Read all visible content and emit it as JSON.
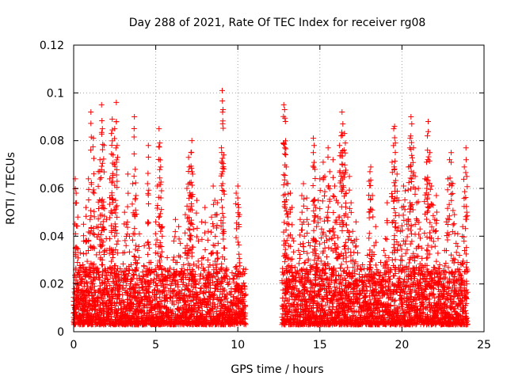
{
  "chart_data": {
    "type": "scatter",
    "title": "Day 288 of 2021, Rate Of TEC Index for receiver rg08",
    "xlabel": "GPS time / hours",
    "ylabel": "ROTI / TECUs",
    "xlim": [
      0,
      25
    ],
    "ylim": [
      0,
      0.12
    ],
    "x_ticks": [
      "0",
      "5",
      "10",
      "15",
      "20",
      "25"
    ],
    "y_ticks": [
      "0",
      "0.02",
      "0.04",
      "0.06",
      "0.08",
      "0.1",
      "0.12"
    ],
    "x_tick_values": [
      0,
      5,
      10,
      15,
      20,
      25
    ],
    "y_tick_values": [
      0,
      0.02,
      0.04,
      0.06,
      0.08,
      0.1,
      0.12
    ],
    "grid": true,
    "legend": "none",
    "marker": "plus",
    "color": "#ff0000",
    "data_gap": [
      10.5,
      12.7
    ],
    "series": [
      {
        "values": [
          [
            0.0,
            0.006
          ],
          [
            0.05,
            0.018
          ],
          [
            0.1,
            0.064
          ],
          [
            0.12,
            0.041
          ],
          [
            0.15,
            0.058
          ],
          [
            0.2,
            0.035
          ],
          [
            0.25,
            0.048
          ],
          [
            0.3,
            0.025
          ],
          [
            0.35,
            0.012
          ],
          [
            0.4,
            0.033
          ],
          [
            0.45,
            0.006
          ],
          [
            0.5,
            0.021
          ],
          [
            0.55,
            0.028
          ],
          [
            0.6,
            0.045
          ],
          [
            0.65,
            0.015
          ],
          [
            0.7,
            0.009
          ],
          [
            0.75,
            0.052
          ],
          [
            0.8,
            0.038
          ],
          [
            0.85,
            0.019
          ],
          [
            0.9,
            0.064
          ],
          [
            0.95,
            0.027
          ],
          [
            1.0,
            0.047
          ],
          [
            1.05,
            0.092
          ],
          [
            1.1,
            0.015
          ],
          [
            1.15,
            0.035
          ],
          [
            1.2,
            0.081
          ],
          [
            1.25,
            0.058
          ],
          [
            1.3,
            0.022
          ],
          [
            1.35,
            0.011
          ],
          [
            1.4,
            0.044
          ],
          [
            1.5,
            0.067
          ],
          [
            1.6,
            0.072
          ],
          [
            1.65,
            0.045
          ],
          [
            1.7,
            0.095
          ],
          [
            1.75,
            0.085
          ],
          [
            1.8,
            0.052
          ],
          [
            1.85,
            0.078
          ],
          [
            1.9,
            0.034
          ],
          [
            2.0,
            0.047
          ],
          [
            2.1,
            0.021
          ],
          [
            2.2,
            0.064
          ],
          [
            2.3,
            0.083
          ],
          [
            2.35,
            0.089
          ],
          [
            2.4,
            0.074
          ],
          [
            2.5,
            0.085
          ],
          [
            2.55,
            0.055
          ],
          [
            2.6,
            0.096
          ],
          [
            2.65,
            0.078
          ],
          [
            2.7,
            0.038
          ],
          [
            2.8,
            0.022
          ],
          [
            2.9,
            0.012
          ],
          [
            3.0,
            0.033
          ],
          [
            3.1,
            0.05
          ],
          [
            3.2,
            0.045
          ],
          [
            3.3,
            0.066
          ],
          [
            3.4,
            0.04
          ],
          [
            3.5,
            0.028
          ],
          [
            3.6,
            0.062
          ],
          [
            3.7,
            0.09
          ],
          [
            3.75,
            0.068
          ],
          [
            3.8,
            0.057
          ],
          [
            3.9,
            0.034
          ],
          [
            4.0,
            0.041
          ],
          [
            4.1,
            0.013
          ],
          [
            4.2,
            0.025
          ],
          [
            4.3,
            0.036
          ],
          [
            4.4,
            0.019
          ],
          [
            4.5,
            0.062
          ],
          [
            4.55,
            0.078
          ],
          [
            4.6,
            0.035
          ],
          [
            4.7,
            0.029
          ],
          [
            4.8,
            0.013
          ],
          [
            4.9,
            0.022
          ],
          [
            5.0,
            0.046
          ],
          [
            5.1,
            0.061
          ],
          [
            5.2,
            0.085
          ],
          [
            5.25,
            0.079
          ],
          [
            5.3,
            0.069
          ],
          [
            5.35,
            0.059
          ],
          [
            5.4,
            0.044
          ],
          [
            5.5,
            0.023
          ],
          [
            5.6,
            0.014
          ],
          [
            5.7,
            0.031
          ],
          [
            5.8,
            0.025
          ],
          [
            5.9,
            0.018
          ],
          [
            6.0,
            0.012
          ],
          [
            6.1,
            0.038
          ],
          [
            6.2,
            0.047
          ],
          [
            6.3,
            0.029
          ],
          [
            6.4,
            0.044
          ],
          [
            6.5,
            0.037
          ],
          [
            6.6,
            0.022
          ],
          [
            6.7,
            0.028
          ],
          [
            6.8,
            0.049
          ],
          [
            6.9,
            0.06
          ],
          [
            7.0,
            0.073
          ],
          [
            7.05,
            0.069
          ],
          [
            7.1,
            0.057
          ],
          [
            7.15,
            0.075
          ],
          [
            7.2,
            0.08
          ],
          [
            7.25,
            0.066
          ],
          [
            7.3,
            0.043
          ],
          [
            7.4,
            0.024
          ],
          [
            7.5,
            0.055
          ],
          [
            7.6,
            0.038
          ],
          [
            7.7,
            0.022
          ],
          [
            7.8,
            0.046
          ],
          [
            7.9,
            0.031
          ],
          [
            8.0,
            0.052
          ],
          [
            8.1,
            0.019
          ],
          [
            8.2,
            0.042
          ],
          [
            8.3,
            0.028
          ],
          [
            8.4,
            0.048
          ],
          [
            8.5,
            0.061
          ],
          [
            8.6,
            0.055
          ],
          [
            8.7,
            0.049
          ],
          [
            8.75,
            0.054
          ],
          [
            8.8,
            0.037
          ],
          [
            8.9,
            0.021
          ],
          [
            9.0,
            0.077
          ],
          [
            9.05,
            0.101
          ],
          [
            9.1,
            0.093
          ],
          [
            9.15,
            0.074
          ],
          [
            9.2,
            0.035
          ],
          [
            9.3,
            0.014
          ],
          [
            9.4,
            0.009
          ],
          [
            9.5,
            0.022
          ],
          [
            9.6,
            0.018
          ],
          [
            9.7,
            0.006
          ],
          [
            9.8,
            0.012
          ],
          [
            9.9,
            0.058
          ],
          [
            10.0,
            0.061
          ],
          [
            10.05,
            0.052
          ],
          [
            10.1,
            0.049
          ],
          [
            10.2,
            0.024
          ],
          [
            10.3,
            0.016
          ],
          [
            10.4,
            0.007
          ],
          [
            10.45,
            0.011
          ],
          [
            12.8,
            0.095
          ],
          [
            12.85,
            0.093
          ],
          [
            12.9,
            0.088
          ],
          [
            12.95,
            0.069
          ],
          [
            13.0,
            0.049
          ],
          [
            13.05,
            0.062
          ],
          [
            13.1,
            0.045
          ],
          [
            13.2,
            0.058
          ],
          [
            13.3,
            0.052
          ],
          [
            13.4,
            0.038
          ],
          [
            13.5,
            0.025
          ],
          [
            13.6,
            0.018
          ],
          [
            13.7,
            0.034
          ],
          [
            13.8,
            0.047
          ],
          [
            13.9,
            0.057
          ],
          [
            14.0,
            0.062
          ],
          [
            14.05,
            0.04
          ],
          [
            14.1,
            0.029
          ],
          [
            14.2,
            0.056
          ],
          [
            14.3,
            0.045
          ],
          [
            14.4,
            0.036
          ],
          [
            14.5,
            0.027
          ],
          [
            14.6,
            0.081
          ],
          [
            14.65,
            0.078
          ],
          [
            14.7,
            0.068
          ],
          [
            14.75,
            0.052
          ],
          [
            14.8,
            0.044
          ],
          [
            14.9,
            0.055
          ],
          [
            15.0,
            0.064
          ],
          [
            15.1,
            0.043
          ],
          [
            15.2,
            0.071
          ],
          [
            15.3,
            0.065
          ],
          [
            15.4,
            0.048
          ],
          [
            15.5,
            0.077
          ],
          [
            15.6,
            0.067
          ],
          [
            15.7,
            0.039
          ],
          [
            15.8,
            0.072
          ],
          [
            15.9,
            0.061
          ],
          [
            16.0,
            0.055
          ],
          [
            16.1,
            0.054
          ],
          [
            16.2,
            0.078
          ],
          [
            16.3,
            0.082
          ],
          [
            16.35,
            0.092
          ],
          [
            16.4,
            0.087
          ],
          [
            16.5,
            0.083
          ],
          [
            16.55,
            0.079
          ],
          [
            16.6,
            0.058
          ],
          [
            16.7,
            0.048
          ],
          [
            16.8,
            0.065
          ],
          [
            16.9,
            0.054
          ],
          [
            17.0,
            0.042
          ],
          [
            17.1,
            0.038
          ],
          [
            17.2,
            0.046
          ],
          [
            17.3,
            0.033
          ],
          [
            17.4,
            0.024
          ],
          [
            17.5,
            0.016
          ],
          [
            17.6,
            0.028
          ],
          [
            17.7,
            0.019
          ],
          [
            17.8,
            0.015
          ],
          [
            17.9,
            0.032
          ],
          [
            18.0,
            0.063
          ],
          [
            18.05,
            0.067
          ],
          [
            18.1,
            0.069
          ],
          [
            18.2,
            0.057
          ],
          [
            18.3,
            0.036
          ],
          [
            18.4,
            0.044
          ],
          [
            18.5,
            0.021
          ],
          [
            18.6,
            0.013
          ],
          [
            18.7,
            0.029
          ],
          [
            18.8,
            0.022
          ],
          [
            18.9,
            0.034
          ],
          [
            19.0,
            0.039
          ],
          [
            19.1,
            0.054
          ],
          [
            19.2,
            0.031
          ],
          [
            19.3,
            0.026
          ],
          [
            19.4,
            0.071
          ],
          [
            19.5,
            0.085
          ],
          [
            19.55,
            0.086
          ],
          [
            19.6,
            0.079
          ],
          [
            19.7,
            0.066
          ],
          [
            19.8,
            0.055
          ],
          [
            19.9,
            0.042
          ],
          [
            20.0,
            0.052
          ],
          [
            20.1,
            0.061
          ],
          [
            20.2,
            0.059
          ],
          [
            20.3,
            0.045
          ],
          [
            20.4,
            0.069
          ],
          [
            20.5,
            0.081
          ],
          [
            20.55,
            0.09
          ],
          [
            20.6,
            0.087
          ],
          [
            20.7,
            0.077
          ],
          [
            20.8,
            0.065
          ],
          [
            20.9,
            0.054
          ],
          [
            21.0,
            0.06
          ],
          [
            21.1,
            0.043
          ],
          [
            21.2,
            0.035
          ],
          [
            21.3,
            0.027
          ],
          [
            21.4,
            0.064
          ],
          [
            21.5,
            0.071
          ],
          [
            21.55,
            0.082
          ],
          [
            21.6,
            0.088
          ],
          [
            21.7,
            0.075
          ],
          [
            21.8,
            0.061
          ],
          [
            21.9,
            0.053
          ],
          [
            22.0,
            0.047
          ],
          [
            22.1,
            0.057
          ],
          [
            22.2,
            0.039
          ],
          [
            22.3,
            0.028
          ],
          [
            22.4,
            0.016
          ],
          [
            22.5,
            0.022
          ],
          [
            22.6,
            0.034
          ],
          [
            22.7,
            0.046
          ],
          [
            22.8,
            0.064
          ],
          [
            22.9,
            0.072
          ],
          [
            23.0,
            0.075
          ],
          [
            23.1,
            0.062
          ],
          [
            23.2,
            0.049
          ],
          [
            23.3,
            0.037
          ],
          [
            23.4,
            0.041
          ],
          [
            23.5,
            0.032
          ],
          [
            23.6,
            0.028
          ],
          [
            23.7,
            0.044
          ],
          [
            23.8,
            0.069
          ],
          [
            23.9,
            0.077
          ],
          [
            23.95,
            0.065
          ]
        ]
      }
    ]
  }
}
